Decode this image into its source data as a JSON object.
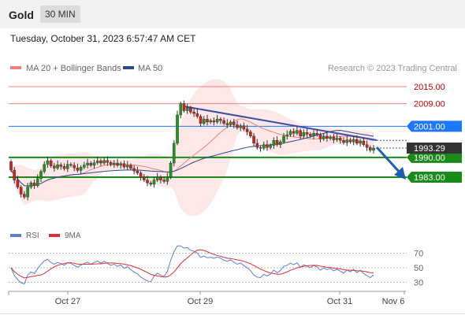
{
  "header": {
    "instrument": "Gold",
    "timeframe": "30 MIN",
    "datetime": "Tuesday, October 31, 2023 6:57:47 AM CET"
  },
  "legend": {
    "items": [
      {
        "label": "MA 20 + Bollinger Bands",
        "color": "#f08080"
      },
      {
        "label": "MA 50",
        "color": "#2c4a8c"
      }
    ],
    "source": "Research © 2023 Trading Central"
  },
  "oscillator_legend": {
    "items": [
      {
        "label": "RSI",
        "color": "#5b7fd6"
      },
      {
        "label": "9MA",
        "color": "#e03030"
      }
    ]
  },
  "chart_data": {
    "type": "candlestick",
    "price_range": [
      1970,
      2024
    ],
    "x_labels": [
      "Oct 27",
      "Oct 29",
      "Oct 31",
      "Nov 6"
    ],
    "levels": [
      {
        "value": 2015.0,
        "label": "2015.00",
        "kind": "resistance",
        "color": "#f08080"
      },
      {
        "value": 2009.0,
        "label": "2009.00",
        "kind": "resistance",
        "color": "#f08080"
      },
      {
        "value": 2001.0,
        "label": "2001.00",
        "kind": "pivot",
        "color": "#1e78ff"
      },
      {
        "value": 1990.0,
        "label": "1990.00",
        "kind": "support",
        "color": "#1a8a1a"
      },
      {
        "value": 1983.0,
        "label": "1983.00",
        "kind": "support",
        "color": "#1a8a1a"
      }
    ],
    "last_price": {
      "value": 1993.29,
      "label": "1993.29"
    },
    "candles": [
      [
        1988.5,
        1985.5
      ],
      [
        1985.5,
        1982.0
      ],
      [
        1982.0,
        1979.5
      ],
      [
        1979.5,
        1977.0
      ],
      [
        1977.0,
        1976.0
      ],
      [
        1976.0,
        1979.5
      ],
      [
        1979.5,
        1981.0
      ],
      [
        1981.0,
        1980.0
      ],
      [
        1980.0,
        1982.5
      ],
      [
        1982.5,
        1985.0
      ],
      [
        1985.0,
        1987.5
      ],
      [
        1987.5,
        1988.8
      ],
      [
        1988.8,
        1987.0
      ],
      [
        1987.0,
        1986.2
      ],
      [
        1986.2,
        1987.4
      ],
      [
        1987.4,
        1986.8
      ],
      [
        1986.8,
        1986.0
      ],
      [
        1986.0,
        1987.5
      ],
      [
        1987.5,
        1987.2
      ],
      [
        1987.2,
        1986.3
      ],
      [
        1986.3,
        1985.4
      ],
      [
        1985.4,
        1986.5
      ],
      [
        1986.5,
        1987.3
      ],
      [
        1987.3,
        1988.0
      ],
      [
        1988.0,
        1987.2
      ],
      [
        1987.2,
        1988.1
      ],
      [
        1988.1,
        1988.8
      ],
      [
        1988.8,
        1988.0
      ],
      [
        1988.0,
        1988.9
      ],
      [
        1988.9,
        1988.2
      ],
      [
        1988.2,
        1987.5
      ],
      [
        1987.5,
        1988.0
      ],
      [
        1988.0,
        1987.2
      ],
      [
        1987.2,
        1987.8
      ],
      [
        1987.8,
        1986.6
      ],
      [
        1986.6,
        1987.2
      ],
      [
        1987.2,
        1986.1
      ],
      [
        1986.1,
        1985.2
      ],
      [
        1985.2,
        1984.5
      ],
      [
        1984.5,
        1983.0
      ],
      [
        1983.0,
        1982.0
      ],
      [
        1982.0,
        1981.0
      ],
      [
        1981.0,
        1980.5
      ],
      [
        1980.5,
        1982.0
      ],
      [
        1982.0,
        1983.0
      ],
      [
        1983.0,
        1982.0
      ],
      [
        1982.0,
        1981.5
      ],
      [
        1981.5,
        1983.0
      ],
      [
        1983.0,
        1988.0
      ],
      [
        1988.0,
        1995.0
      ],
      [
        1995.0,
        2005.0
      ],
      [
        2005.0,
        2009.0
      ],
      [
        2009.0,
        2006.5
      ],
      [
        2006.5,
        2007.5
      ],
      [
        2007.5,
        2006.0
      ],
      [
        2006.0,
        2005.5
      ],
      [
        2005.5,
        2004.5
      ],
      [
        2004.5,
        2002.0
      ],
      [
        2002.0,
        2003.5
      ],
      [
        2003.5,
        2002.5
      ],
      [
        2002.5,
        2003.0
      ],
      [
        2003.0,
        2002.5
      ],
      [
        2002.5,
        2003.5
      ],
      [
        2003.5,
        2003.0
      ],
      [
        2003.0,
        2002.0
      ],
      [
        2002.0,
        2001.5
      ],
      [
        2001.5,
        2002.5
      ],
      [
        2002.5,
        2001.5
      ],
      [
        2001.5,
        2000.5
      ],
      [
        2000.5,
        2001.2
      ],
      [
        2001.2,
        2000.0
      ],
      [
        2000.0,
        1999.0
      ],
      [
        1999.0,
        1997.5
      ],
      [
        1997.5,
        1995.0
      ],
      [
        1995.0,
        1993.5
      ],
      [
        1993.5,
        1993.2
      ],
      [
        1993.2,
        1994.5
      ],
      [
        1994.5,
        1993.5
      ],
      [
        1993.5,
        1994.2
      ],
      [
        1994.2,
        1996.0
      ],
      [
        1996.0,
        1994.5
      ],
      [
        1994.5,
        1995.5
      ],
      [
        1995.5,
        1997.5
      ],
      [
        1997.5,
        1998.0
      ],
      [
        1998.0,
        1999.2
      ],
      [
        1999.2,
        1998.5
      ],
      [
        1998.5,
        1999.5
      ],
      [
        1999.5,
        1997.5
      ],
      [
        1997.5,
        1998.8
      ],
      [
        1998.8,
        1998.2
      ],
      [
        1998.2,
        1997.6
      ],
      [
        1997.6,
        1998.5
      ],
      [
        1998.5,
        1998.0
      ],
      [
        1998.0,
        1996.5
      ],
      [
        1996.5,
        1997.5
      ],
      [
        1997.5,
        1996.7
      ],
      [
        1996.7,
        1997.2
      ],
      [
        1997.2,
        1996.2
      ],
      [
        1996.2,
        1996.8
      ],
      [
        1996.8,
        1996.0
      ],
      [
        1996.0,
        1995.2
      ],
      [
        1995.2,
        1996.2
      ],
      [
        1996.2,
        1995.5
      ],
      [
        1995.5,
        1996.3
      ],
      [
        1996.3,
        1995.0
      ],
      [
        1995.0,
        1995.8
      ],
      [
        1995.8,
        1994.5
      ],
      [
        1994.5,
        1993.5
      ],
      [
        1993.5,
        1992.5
      ],
      [
        1992.5,
        1993.29
      ]
    ],
    "rsi_scale": {
      "min": 20,
      "max": 80,
      "ticks": [
        70,
        50,
        30
      ]
    }
  }
}
